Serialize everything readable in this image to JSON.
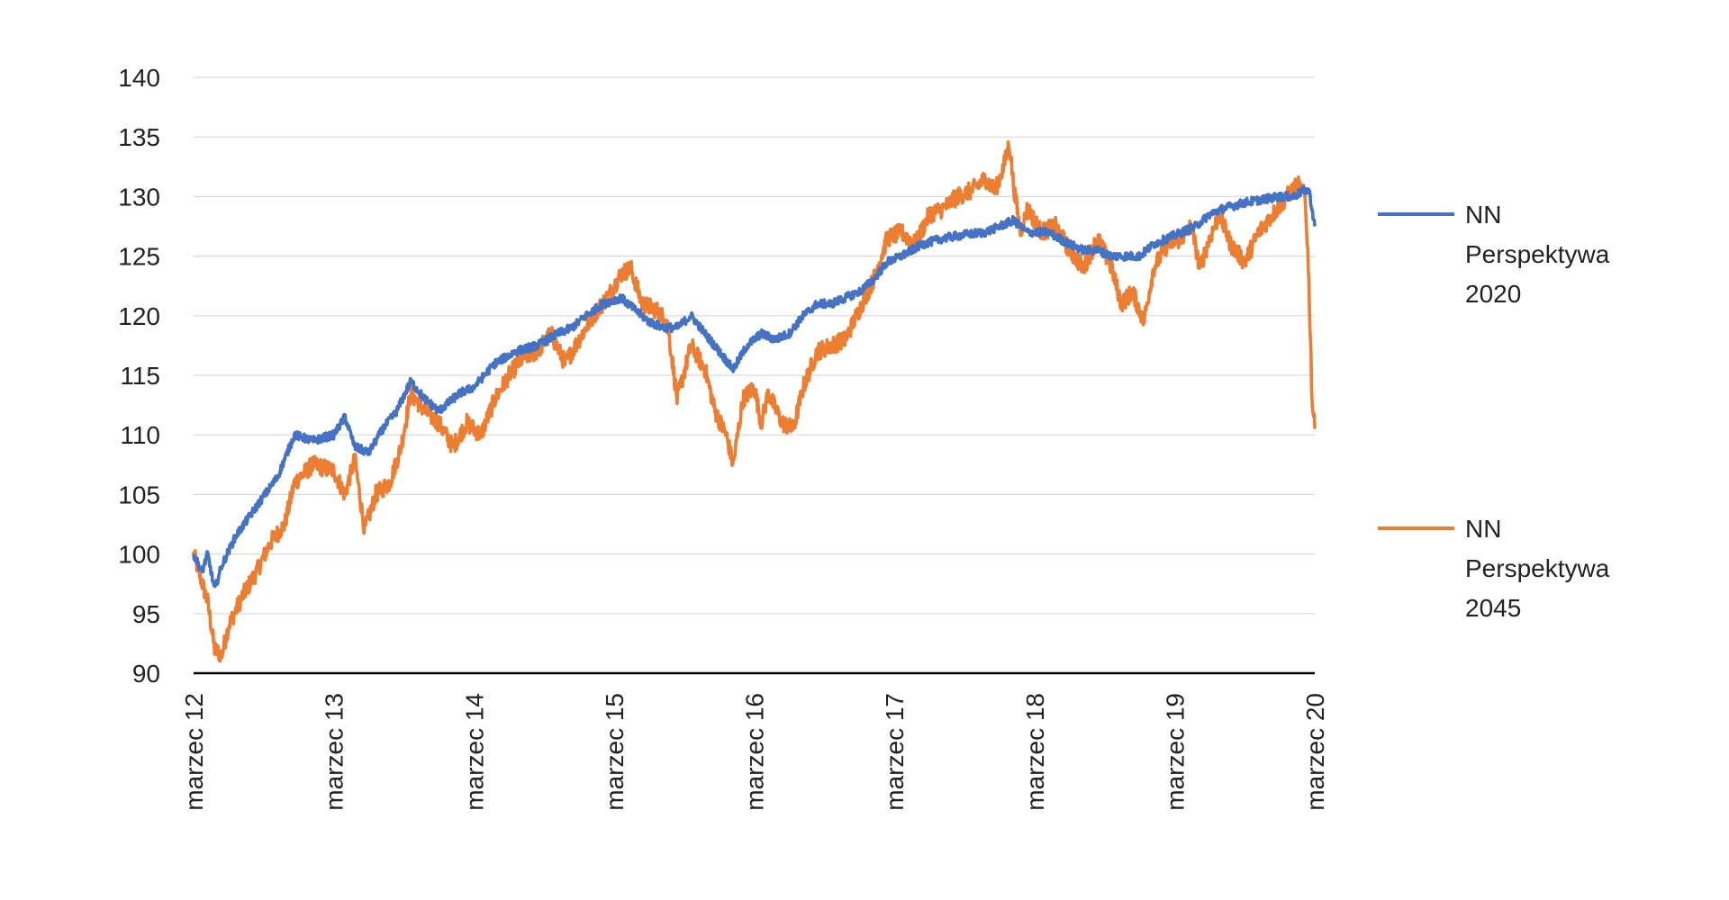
{
  "chart_data": {
    "type": "line",
    "title": "",
    "xlabel": "",
    "ylabel": "",
    "ylim": [
      90,
      140
    ],
    "yticks": [
      90,
      95,
      100,
      105,
      110,
      115,
      120,
      125,
      130,
      135,
      140
    ],
    "xlim": [
      2012.0,
      2020.0
    ],
    "xtick_labels": [
      "marzec 12",
      "marzec 13",
      "marzec 14",
      "marzec 15",
      "marzec 16",
      "marzec 17",
      "marzec 18",
      "marzec 19",
      "marzec 20"
    ],
    "grid": true,
    "legend_position": "right",
    "series": [
      {
        "name": [
          "NN",
          "Perspektywa",
          "2020"
        ],
        "color": "#4472C4",
        "points": [
          [
            2012.0,
            100.0
          ],
          [
            2012.06,
            98.5
          ],
          [
            2012.1,
            100.0
          ],
          [
            2012.15,
            97.0
          ],
          [
            2012.2,
            99.0
          ],
          [
            2012.3,
            101.5
          ],
          [
            2012.45,
            104.0
          ],
          [
            2012.6,
            106.5
          ],
          [
            2012.72,
            110.0
          ],
          [
            2012.85,
            109.5
          ],
          [
            2013.0,
            110.0
          ],
          [
            2013.08,
            111.5
          ],
          [
            2013.15,
            109.0
          ],
          [
            2013.25,
            108.5
          ],
          [
            2013.35,
            110.5
          ],
          [
            2013.45,
            112.0
          ],
          [
            2013.55,
            114.5
          ],
          [
            2013.65,
            113.0
          ],
          [
            2013.75,
            112.0
          ],
          [
            2013.9,
            113.5
          ],
          [
            2014.0,
            114.0
          ],
          [
            2014.15,
            116.0
          ],
          [
            2014.3,
            117.0
          ],
          [
            2014.45,
            117.5
          ],
          [
            2014.6,
            118.5
          ],
          [
            2014.7,
            119.0
          ],
          [
            2014.8,
            120.0
          ],
          [
            2014.92,
            121.0
          ],
          [
            2015.05,
            121.5
          ],
          [
            2015.15,
            120.5
          ],
          [
            2015.25,
            119.5
          ],
          [
            2015.35,
            119.0
          ],
          [
            2015.45,
            119.0
          ],
          [
            2015.55,
            120.0
          ],
          [
            2015.65,
            118.5
          ],
          [
            2015.75,
            117.0
          ],
          [
            2015.85,
            115.5
          ],
          [
            2015.95,
            117.5
          ],
          [
            2016.05,
            118.5
          ],
          [
            2016.15,
            118.0
          ],
          [
            2016.25,
            118.5
          ],
          [
            2016.35,
            120.0
          ],
          [
            2016.45,
            121.0
          ],
          [
            2016.55,
            121.0
          ],
          [
            2016.65,
            121.5
          ],
          [
            2016.75,
            122.0
          ],
          [
            2016.85,
            123.0
          ],
          [
            2016.95,
            124.5
          ],
          [
            2017.05,
            125.0
          ],
          [
            2017.2,
            126.0
          ],
          [
            2017.35,
            126.5
          ],
          [
            2017.5,
            126.8
          ],
          [
            2017.65,
            127.0
          ],
          [
            2017.75,
            127.5
          ],
          [
            2017.85,
            128.0
          ],
          [
            2017.95,
            127.0
          ],
          [
            2018.1,
            127.0
          ],
          [
            2018.25,
            126.0
          ],
          [
            2018.35,
            125.5
          ],
          [
            2018.45,
            125.5
          ],
          [
            2018.55,
            125.0
          ],
          [
            2018.65,
            125.0
          ],
          [
            2018.75,
            125.0
          ],
          [
            2018.85,
            126.0
          ],
          [
            2018.95,
            126.5
          ],
          [
            2019.05,
            127.0
          ],
          [
            2019.15,
            127.5
          ],
          [
            2019.25,
            128.5
          ],
          [
            2019.35,
            129.0
          ],
          [
            2019.5,
            129.5
          ],
          [
            2019.65,
            129.8
          ],
          [
            2019.75,
            130.0
          ],
          [
            2019.85,
            130.0
          ],
          [
            2019.92,
            130.5
          ],
          [
            2019.96,
            130.5
          ],
          [
            2020.0,
            127.5
          ]
        ]
      },
      {
        "name": [
          "NN",
          "Perspektywa",
          "2045"
        ],
        "color": "#ED7D31",
        "points": [
          [
            2012.0,
            100.0
          ],
          [
            2012.05,
            98.0
          ],
          [
            2012.1,
            96.0
          ],
          [
            2012.15,
            92.0
          ],
          [
            2012.2,
            91.5
          ],
          [
            2012.25,
            94.0
          ],
          [
            2012.35,
            96.5
          ],
          [
            2012.45,
            98.5
          ],
          [
            2012.55,
            101.0
          ],
          [
            2012.65,
            102.5
          ],
          [
            2012.72,
            106.0
          ],
          [
            2012.85,
            107.5
          ],
          [
            2013.0,
            107.0
          ],
          [
            2013.08,
            105.0
          ],
          [
            2013.15,
            108.0
          ],
          [
            2013.22,
            102.0
          ],
          [
            2013.3,
            105.0
          ],
          [
            2013.4,
            106.0
          ],
          [
            2013.48,
            109.0
          ],
          [
            2013.55,
            113.5
          ],
          [
            2013.65,
            112.0
          ],
          [
            2013.75,
            111.0
          ],
          [
            2013.85,
            109.0
          ],
          [
            2013.95,
            111.0
          ],
          [
            2014.05,
            110.0
          ],
          [
            2014.15,
            113.0
          ],
          [
            2014.25,
            115.0
          ],
          [
            2014.35,
            116.5
          ],
          [
            2014.45,
            117.0
          ],
          [
            2014.55,
            118.5
          ],
          [
            2014.65,
            116.0
          ],
          [
            2014.75,
            118.0
          ],
          [
            2014.85,
            120.0
          ],
          [
            2014.95,
            121.5
          ],
          [
            2015.05,
            123.5
          ],
          [
            2015.12,
            124.0
          ],
          [
            2015.2,
            121.0
          ],
          [
            2015.3,
            120.5
          ],
          [
            2015.38,
            119.5
          ],
          [
            2015.45,
            113.0
          ],
          [
            2015.55,
            117.5
          ],
          [
            2015.65,
            115.5
          ],
          [
            2015.72,
            112.0
          ],
          [
            2015.8,
            110.0
          ],
          [
            2015.85,
            107.5
          ],
          [
            2015.92,
            113.0
          ],
          [
            2016.0,
            114.0
          ],
          [
            2016.05,
            111.0
          ],
          [
            2016.1,
            113.5
          ],
          [
            2016.2,
            111.0
          ],
          [
            2016.28,
            110.5
          ],
          [
            2016.35,
            114.0
          ],
          [
            2016.45,
            117.0
          ],
          [
            2016.55,
            117.5
          ],
          [
            2016.65,
            118.0
          ],
          [
            2016.75,
            120.5
          ],
          [
            2016.85,
            123.0
          ],
          [
            2016.95,
            126.5
          ],
          [
            2017.05,
            127.0
          ],
          [
            2017.15,
            126.0
          ],
          [
            2017.25,
            128.5
          ],
          [
            2017.35,
            129.0
          ],
          [
            2017.45,
            130.0
          ],
          [
            2017.55,
            130.5
          ],
          [
            2017.65,
            131.5
          ],
          [
            2017.72,
            130.5
          ],
          [
            2017.78,
            132.5
          ],
          [
            2017.82,
            134.5
          ],
          [
            2017.85,
            131.0
          ],
          [
            2017.9,
            127.0
          ],
          [
            2017.95,
            129.0
          ],
          [
            2018.05,
            127.0
          ],
          [
            2018.15,
            127.5
          ],
          [
            2018.25,
            125.5
          ],
          [
            2018.35,
            124.0
          ],
          [
            2018.45,
            126.5
          ],
          [
            2018.55,
            124.0
          ],
          [
            2018.62,
            121.0
          ],
          [
            2018.7,
            122.0
          ],
          [
            2018.78,
            119.5
          ],
          [
            2018.85,
            124.0
          ],
          [
            2018.95,
            126.0
          ],
          [
            2019.05,
            126.5
          ],
          [
            2019.12,
            127.5
          ],
          [
            2019.18,
            124.0
          ],
          [
            2019.25,
            126.5
          ],
          [
            2019.32,
            128.5
          ],
          [
            2019.4,
            126.0
          ],
          [
            2019.5,
            124.5
          ],
          [
            2019.6,
            127.0
          ],
          [
            2019.7,
            128.5
          ],
          [
            2019.8,
            130.0
          ],
          [
            2019.88,
            131.0
          ],
          [
            2019.93,
            130.0
          ],
          [
            2019.95,
            125.5
          ],
          [
            2019.97,
            118.0
          ],
          [
            2019.98,
            113.0
          ],
          [
            2020.0,
            110.5
          ]
        ]
      }
    ]
  }
}
